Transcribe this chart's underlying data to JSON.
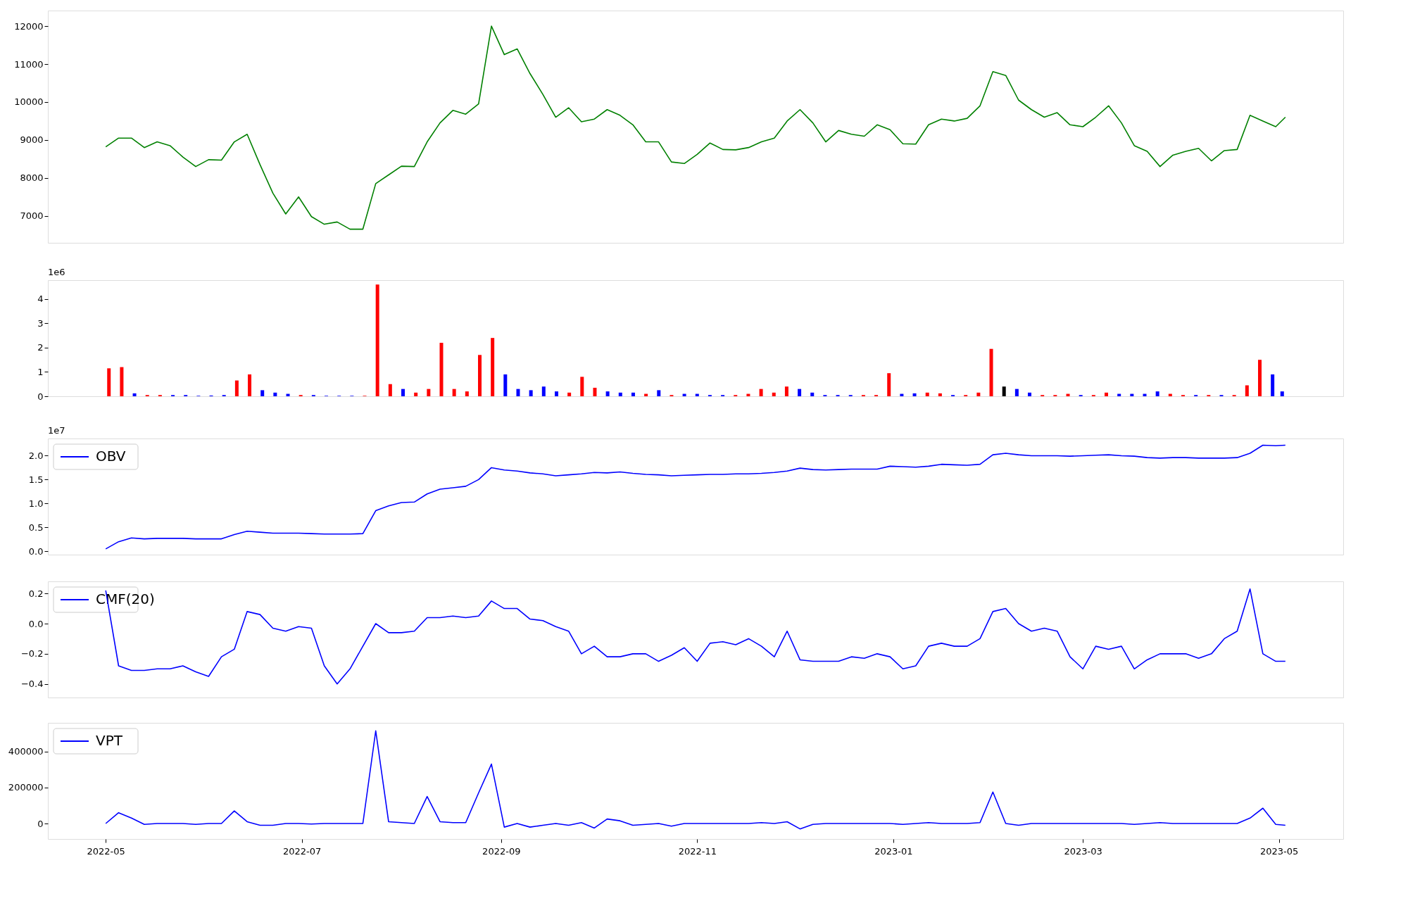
{
  "chart_data": [
    {
      "type": "line",
      "x": [
        "2022-05-01",
        "2022-05-05",
        "2022-05-09",
        "2022-05-13",
        "2022-05-17",
        "2022-05-21",
        "2022-05-25",
        "2022-05-29",
        "2022-06-02",
        "2022-06-06",
        "2022-06-10",
        "2022-06-14",
        "2022-06-18",
        "2022-06-22",
        "2022-06-26",
        "2022-06-30",
        "2022-07-04",
        "2022-07-08",
        "2022-07-12",
        "2022-07-16",
        "2022-07-20",
        "2022-07-24",
        "2022-07-28",
        "2022-08-01",
        "2022-08-05",
        "2022-08-09",
        "2022-08-13",
        "2022-08-17",
        "2022-08-21",
        "2022-08-25",
        "2022-08-29",
        "2022-09-02",
        "2022-09-06",
        "2022-09-10",
        "2022-09-14",
        "2022-09-18",
        "2022-09-22",
        "2022-09-26",
        "2022-09-30",
        "2022-10-04",
        "2022-10-08",
        "2022-10-12",
        "2022-10-16",
        "2022-10-20",
        "2022-10-24",
        "2022-10-28",
        "2022-11-01",
        "2022-11-05",
        "2022-11-09",
        "2022-11-13",
        "2022-11-17",
        "2022-11-21",
        "2022-11-25",
        "2022-11-29",
        "2022-12-03",
        "2022-12-07",
        "2022-12-11",
        "2022-12-15",
        "2022-12-19",
        "2022-12-23",
        "2022-12-27",
        "2022-12-31",
        "2023-01-04",
        "2023-01-08",
        "2023-01-12",
        "2023-01-16",
        "2023-01-20",
        "2023-01-24",
        "2023-01-28",
        "2023-02-01",
        "2023-02-05",
        "2023-02-09",
        "2023-02-13",
        "2023-02-17",
        "2023-02-21",
        "2023-02-25",
        "2023-03-01",
        "2023-03-05",
        "2023-03-09",
        "2023-03-13",
        "2023-03-17",
        "2023-03-21",
        "2023-03-25",
        "2023-03-29",
        "2023-04-02",
        "2023-04-06",
        "2023-04-10",
        "2023-04-14",
        "2023-04-18",
        "2023-04-22",
        "2023-04-26",
        "2023-04-30",
        "2023-05-03"
      ],
      "series": [
        {
          "color": "#008000",
          "values": [
            8820,
            9050,
            9050,
            8800,
            8950,
            8850,
            8550,
            8300,
            8480,
            8470,
            8950,
            9150,
            8350,
            7600,
            7050,
            7500,
            6980,
            6780,
            6840,
            6650,
            6650,
            7850,
            8080,
            8310,
            8300,
            8950,
            9450,
            9780,
            9680,
            9950,
            12000,
            11250,
            11400,
            10750,
            10200,
            9600,
            9850,
            9480,
            9550,
            9800,
            9650,
            9400,
            8950,
            8950,
            8420,
            8380,
            8620,
            8920,
            8750,
            8740,
            8800,
            8950,
            9050,
            9500,
            9800,
            9450,
            8950,
            9250,
            9150,
            9100,
            9400,
            9270,
            8900,
            8890,
            9400,
            9550,
            9500,
            9570,
            9900,
            10800,
            10700,
            10050,
            9800,
            9600,
            9720,
            9400,
            9350,
            9600,
            9900,
            9450,
            8850,
            8700,
            8300,
            8600,
            8700,
            8780,
            8450,
            8720,
            8750,
            9650,
            9500,
            9350,
            9600
          ]
        }
      ],
      "xlim": [
        "2022-04-13",
        "2023-05-21"
      ],
      "ylim": [
        6290,
        12410
      ],
      "yticks": [
        7000,
        8000,
        9000,
        10000,
        11000,
        12000
      ],
      "tick_labels": "y"
    },
    {
      "type": "bar",
      "x": [
        "2022-05-01",
        "2022-05-05",
        "2022-05-09",
        "2022-05-13",
        "2022-05-17",
        "2022-05-21",
        "2022-05-25",
        "2022-05-29",
        "2022-06-02",
        "2022-06-06",
        "2022-06-10",
        "2022-06-14",
        "2022-06-18",
        "2022-06-22",
        "2022-06-26",
        "2022-06-30",
        "2022-07-04",
        "2022-07-08",
        "2022-07-12",
        "2022-07-16",
        "2022-07-20",
        "2022-07-24",
        "2022-07-28",
        "2022-08-01",
        "2022-08-05",
        "2022-08-09",
        "2022-08-13",
        "2022-08-17",
        "2022-08-21",
        "2022-08-25",
        "2022-08-29",
        "2022-09-02",
        "2022-09-06",
        "2022-09-10",
        "2022-09-14",
        "2022-09-18",
        "2022-09-22",
        "2022-09-26",
        "2022-09-30",
        "2022-10-04",
        "2022-10-08",
        "2022-10-12",
        "2022-10-16",
        "2022-10-20",
        "2022-10-24",
        "2022-10-28",
        "2022-11-01",
        "2022-11-05",
        "2022-11-09",
        "2022-11-13",
        "2022-11-17",
        "2022-11-21",
        "2022-11-25",
        "2022-11-29",
        "2022-12-03",
        "2022-12-07",
        "2022-12-11",
        "2022-12-15",
        "2022-12-19",
        "2022-12-23",
        "2022-12-27",
        "2022-12-31",
        "2023-01-04",
        "2023-01-08",
        "2023-01-12",
        "2023-01-16",
        "2023-01-20",
        "2023-01-24",
        "2023-01-28",
        "2023-02-01",
        "2023-02-05",
        "2023-02-09",
        "2023-02-13",
        "2023-02-17",
        "2023-02-21",
        "2023-02-25",
        "2023-03-01",
        "2023-03-05",
        "2023-03-09",
        "2023-03-13",
        "2023-03-17",
        "2023-03-21",
        "2023-03-25",
        "2023-03-29",
        "2023-04-02",
        "2023-04-06",
        "2023-04-10",
        "2023-04-14",
        "2023-04-18",
        "2023-04-22",
        "2023-04-26",
        "2023-04-30",
        "2023-05-03"
      ],
      "values": [
        1.15,
        1.2,
        0.12,
        0.05,
        0.05,
        0.05,
        0.05,
        0.02,
        0.03,
        0.05,
        0.65,
        0.9,
        0.25,
        0.15,
        0.1,
        0.05,
        0.05,
        0.02,
        0.02,
        0.02,
        0.02,
        4.6,
        0.5,
        0.3,
        0.15,
        0.3,
        2.2,
        0.3,
        0.2,
        1.7,
        2.4,
        0.9,
        0.3,
        0.25,
        0.4,
        0.2,
        0.15,
        0.8,
        0.35,
        0.2,
        0.15,
        0.15,
        0.1,
        0.25,
        0.05,
        0.1,
        0.1,
        0.05,
        0.05,
        0.05,
        0.1,
        0.3,
        0.15,
        0.4,
        0.3,
        0.15,
        0.05,
        0.05,
        0.05,
        0.05,
        0.05,
        0.95,
        0.1,
        0.12,
        0.15,
        0.12,
        0.05,
        0.05,
        0.15,
        1.95,
        0.4,
        0.3,
        0.15,
        0.05,
        0.05,
        0.1,
        0.05,
        0.05,
        0.15,
        0.1,
        0.1,
        0.1,
        0.2,
        0.1,
        0.05,
        0.05,
        0.05,
        0.05,
        0.05,
        0.45,
        1.5,
        0.9,
        0.2
      ],
      "colors": [
        "#ff0000",
        "#ff0000",
        "#0000ff",
        "#ff0000",
        "#ff0000",
        "#0000ff",
        "#0000ff",
        "#0000ff",
        "#0000ff",
        "#0000ff",
        "#ff0000",
        "#ff0000",
        "#0000ff",
        "#0000ff",
        "#0000ff",
        "#ff0000",
        "#0000ff",
        "#0000ff",
        "#0000ff",
        "#0000ff",
        "#ff0000",
        "#ff0000",
        "#ff0000",
        "#0000ff",
        "#ff0000",
        "#ff0000",
        "#ff0000",
        "#ff0000",
        "#ff0000",
        "#ff0000",
        "#ff0000",
        "#0000ff",
        "#0000ff",
        "#0000ff",
        "#0000ff",
        "#0000ff",
        "#ff0000",
        "#ff0000",
        "#ff0000",
        "#0000ff",
        "#0000ff",
        "#0000ff",
        "#ff0000",
        "#0000ff",
        "#ff0000",
        "#0000ff",
        "#0000ff",
        "#0000ff",
        "#0000ff",
        "#ff0000",
        "#ff0000",
        "#ff0000",
        "#ff0000",
        "#ff0000",
        "#0000ff",
        "#0000ff",
        "#0000ff",
        "#0000ff",
        "#0000ff",
        "#ff0000",
        "#ff0000",
        "#ff0000",
        "#0000ff",
        "#0000ff",
        "#ff0000",
        "#ff0000",
        "#0000ff",
        "#ff0000",
        "#ff0000",
        "#ff0000",
        "#000000",
        "#0000ff",
        "#0000ff",
        "#ff0000",
        "#ff0000",
        "#ff0000",
        "#0000ff",
        "#ff0000",
        "#ff0000",
        "#0000ff",
        "#0000ff",
        "#0000ff",
        "#0000ff",
        "#ff0000",
        "#ff0000",
        "#0000ff",
        "#ff0000",
        "#0000ff",
        "#ff0000",
        "#ff0000",
        "#ff0000",
        "#0000ff",
        "#0000ff"
      ],
      "xlim": [
        "2022-04-13",
        "2023-05-21"
      ],
      "ylim": [
        0,
        4.78
      ],
      "yticks": [
        0,
        1,
        2,
        3,
        4
      ],
      "annotations": [
        "1e6"
      ],
      "tick_labels": "y"
    },
    {
      "type": "line",
      "x": [
        "2022-05-01",
        "2022-05-05",
        "2022-05-09",
        "2022-05-13",
        "2022-05-17",
        "2022-05-21",
        "2022-05-25",
        "2022-05-29",
        "2022-06-02",
        "2022-06-06",
        "2022-06-10",
        "2022-06-14",
        "2022-06-18",
        "2022-06-22",
        "2022-06-26",
        "2022-06-30",
        "2022-07-04",
        "2022-07-08",
        "2022-07-12",
        "2022-07-16",
        "2022-07-20",
        "2022-07-24",
        "2022-07-28",
        "2022-08-01",
        "2022-08-05",
        "2022-08-09",
        "2022-08-13",
        "2022-08-17",
        "2022-08-21",
        "2022-08-25",
        "2022-08-29",
        "2022-09-02",
        "2022-09-06",
        "2022-09-10",
        "2022-09-14",
        "2022-09-18",
        "2022-09-22",
        "2022-09-26",
        "2022-09-30",
        "2022-10-04",
        "2022-10-08",
        "2022-10-12",
        "2022-10-16",
        "2022-10-20",
        "2022-10-24",
        "2022-10-28",
        "2022-11-01",
        "2022-11-05",
        "2022-11-09",
        "2022-11-13",
        "2022-11-17",
        "2022-11-21",
        "2022-11-25",
        "2022-11-29",
        "2022-12-03",
        "2022-12-07",
        "2022-12-11",
        "2022-12-15",
        "2022-12-19",
        "2022-12-23",
        "2022-12-27",
        "2022-12-31",
        "2023-01-04",
        "2023-01-08",
        "2023-01-12",
        "2023-01-16",
        "2023-01-20",
        "2023-01-24",
        "2023-01-28",
        "2023-02-01",
        "2023-02-05",
        "2023-02-09",
        "2023-02-13",
        "2023-02-17",
        "2023-02-21",
        "2023-02-25",
        "2023-03-01",
        "2023-03-05",
        "2023-03-09",
        "2023-03-13",
        "2023-03-17",
        "2023-03-21",
        "2023-03-25",
        "2023-03-29",
        "2023-04-02",
        "2023-04-06",
        "2023-04-10",
        "2023-04-14",
        "2023-04-18",
        "2023-04-22",
        "2023-04-26",
        "2023-04-30",
        "2023-05-03"
      ],
      "series": [
        {
          "name": "OBV",
          "color": "#0000ff",
          "values": [
            0.05,
            0.2,
            0.28,
            0.26,
            0.27,
            0.27,
            0.27,
            0.26,
            0.26,
            0.26,
            0.35,
            0.42,
            0.4,
            0.38,
            0.38,
            0.38,
            0.37,
            0.36,
            0.36,
            0.36,
            0.37,
            0.85,
            0.95,
            1.02,
            1.03,
            1.2,
            1.3,
            1.33,
            1.36,
            1.5,
            1.75,
            1.7,
            1.68,
            1.64,
            1.62,
            1.58,
            1.6,
            1.62,
            1.65,
            1.64,
            1.66,
            1.63,
            1.61,
            1.6,
            1.58,
            1.59,
            1.6,
            1.61,
            1.61,
            1.62,
            1.62,
            1.63,
            1.65,
            1.68,
            1.74,
            1.71,
            1.7,
            1.71,
            1.72,
            1.72,
            1.72,
            1.78,
            1.77,
            1.76,
            1.78,
            1.82,
            1.81,
            1.8,
            1.82,
            2.02,
            2.05,
            2.02,
            2.0,
            2.0,
            2.0,
            1.99,
            2.0,
            2.01,
            2.02,
            2.0,
            1.99,
            1.96,
            1.95,
            1.96,
            1.96,
            1.95,
            1.95,
            1.95,
            1.96,
            2.05,
            2.22,
            2.21,
            2.22
          ]
        }
      ],
      "xlim": [
        "2022-04-13",
        "2023-05-21"
      ],
      "ylim": [
        -0.07,
        2.36
      ],
      "yticks": [
        {
          "value": 0,
          "label": "0.0"
        },
        0.5,
        {
          "value": 1,
          "label": "1.0"
        },
        1.5,
        {
          "value": 2,
          "label": "2.0"
        }
      ],
      "annotations": [
        "1e7"
      ],
      "tick_labels": "y",
      "legend": "top left"
    },
    {
      "type": "line",
      "x": [
        "2022-05-01",
        "2022-05-05",
        "2022-05-09",
        "2022-05-13",
        "2022-05-17",
        "2022-05-21",
        "2022-05-25",
        "2022-05-29",
        "2022-06-02",
        "2022-06-06",
        "2022-06-10",
        "2022-06-14",
        "2022-06-18",
        "2022-06-22",
        "2022-06-26",
        "2022-06-30",
        "2022-07-04",
        "2022-07-08",
        "2022-07-12",
        "2022-07-16",
        "2022-07-20",
        "2022-07-24",
        "2022-07-28",
        "2022-08-01",
        "2022-08-05",
        "2022-08-09",
        "2022-08-13",
        "2022-08-17",
        "2022-08-21",
        "2022-08-25",
        "2022-08-29",
        "2022-09-02",
        "2022-09-06",
        "2022-09-10",
        "2022-09-14",
        "2022-09-18",
        "2022-09-22",
        "2022-09-26",
        "2022-09-30",
        "2022-10-04",
        "2022-10-08",
        "2022-10-12",
        "2022-10-16",
        "2022-10-20",
        "2022-10-24",
        "2022-10-28",
        "2022-11-01",
        "2022-11-05",
        "2022-11-09",
        "2022-11-13",
        "2022-11-17",
        "2022-11-21",
        "2022-11-25",
        "2022-11-29",
        "2022-12-03",
        "2022-12-07",
        "2022-12-11",
        "2022-12-15",
        "2022-12-19",
        "2022-12-23",
        "2022-12-27",
        "2022-12-31",
        "2023-01-04",
        "2023-01-08",
        "2023-01-12",
        "2023-01-16",
        "2023-01-20",
        "2023-01-24",
        "2023-01-28",
        "2023-02-01",
        "2023-02-05",
        "2023-02-09",
        "2023-02-13",
        "2023-02-17",
        "2023-02-21",
        "2023-02-25",
        "2023-03-01",
        "2023-03-05",
        "2023-03-09",
        "2023-03-13",
        "2023-03-17",
        "2023-03-21",
        "2023-03-25",
        "2023-03-29",
        "2023-04-02",
        "2023-04-06",
        "2023-04-10",
        "2023-04-14",
        "2023-04-18",
        "2023-04-22",
        "2023-04-26",
        "2023-04-30",
        "2023-05-03"
      ],
      "series": [
        {
          "name": "CMF(20)",
          "color": "#0000ff",
          "values": [
            0.22,
            -0.28,
            -0.31,
            -0.31,
            -0.3,
            -0.3,
            -0.28,
            -0.32,
            -0.35,
            -0.22,
            -0.17,
            0.08,
            0.06,
            -0.03,
            -0.05,
            -0.02,
            -0.03,
            -0.28,
            -0.4,
            -0.3,
            -0.15,
            0.0,
            -0.06,
            -0.06,
            -0.05,
            0.04,
            0.04,
            0.05,
            0.04,
            0.05,
            0.15,
            0.1,
            0.1,
            0.03,
            0.02,
            -0.02,
            -0.05,
            -0.2,
            -0.15,
            -0.22,
            -0.22,
            -0.2,
            -0.2,
            -0.25,
            -0.21,
            -0.16,
            -0.25,
            -0.13,
            -0.12,
            -0.14,
            -0.1,
            -0.15,
            -0.22,
            -0.05,
            -0.24,
            -0.25,
            -0.25,
            -0.25,
            -0.22,
            -0.23,
            -0.2,
            -0.22,
            -0.3,
            -0.28,
            -0.15,
            -0.13,
            -0.15,
            -0.15,
            -0.1,
            0.08,
            0.1,
            0.0,
            -0.05,
            -0.03,
            -0.05,
            -0.22,
            -0.3,
            -0.15,
            -0.17,
            -0.15,
            -0.3,
            -0.24,
            -0.2,
            -0.2,
            -0.2,
            -0.23,
            -0.2,
            -0.1,
            -0.05,
            0.23,
            -0.2,
            -0.25,
            -0.25
          ]
        }
      ],
      "xlim": [
        "2022-04-13",
        "2023-05-21"
      ],
      "ylim": [
        -0.49,
        0.28
      ],
      "yticks": [
        {
          "value": -0.4,
          "label": "−0.4"
        },
        {
          "value": -0.2,
          "label": "−0.2"
        },
        {
          "value": 0,
          "label": "0.0"
        },
        {
          "value": 0.2,
          "label": "0.2"
        }
      ],
      "tick_labels": "y",
      "legend": "top left"
    },
    {
      "type": "line",
      "x": [
        "2022-05-01",
        "2022-05-05",
        "2022-05-09",
        "2022-05-13",
        "2022-05-17",
        "2022-05-21",
        "2022-05-25",
        "2022-05-29",
        "2022-06-02",
        "2022-06-06",
        "2022-06-10",
        "2022-06-14",
        "2022-06-18",
        "2022-06-22",
        "2022-06-26",
        "2022-06-30",
        "2022-07-04",
        "2022-07-08",
        "2022-07-12",
        "2022-07-16",
        "2022-07-20",
        "2022-07-24",
        "2022-07-28",
        "2022-08-01",
        "2022-08-05",
        "2022-08-09",
        "2022-08-13",
        "2022-08-17",
        "2022-08-21",
        "2022-08-25",
        "2022-08-29",
        "2022-09-02",
        "2022-09-06",
        "2022-09-10",
        "2022-09-14",
        "2022-09-18",
        "2022-09-22",
        "2022-09-26",
        "2022-09-30",
        "2022-10-04",
        "2022-10-08",
        "2022-10-12",
        "2022-10-16",
        "2022-10-20",
        "2022-10-24",
        "2022-10-28",
        "2022-11-01",
        "2022-11-05",
        "2022-11-09",
        "2022-11-13",
        "2022-11-17",
        "2022-11-21",
        "2022-11-25",
        "2022-11-29",
        "2022-12-03",
        "2022-12-07",
        "2022-12-11",
        "2022-12-15",
        "2022-12-19",
        "2022-12-23",
        "2022-12-27",
        "2022-12-31",
        "2023-01-04",
        "2023-01-08",
        "2023-01-12",
        "2023-01-16",
        "2023-01-20",
        "2023-01-24",
        "2023-01-28",
        "2023-02-01",
        "2023-02-05",
        "2023-02-09",
        "2023-02-13",
        "2023-02-17",
        "2023-02-21",
        "2023-02-25",
        "2023-03-01",
        "2023-03-05",
        "2023-03-09",
        "2023-03-13",
        "2023-03-17",
        "2023-03-21",
        "2023-03-25",
        "2023-03-29",
        "2023-04-02",
        "2023-04-06",
        "2023-04-10",
        "2023-04-14",
        "2023-04-18",
        "2023-04-22",
        "2023-04-26",
        "2023-04-30",
        "2023-05-03"
      ],
      "series": [
        {
          "name": "VPT",
          "color": "#0000ff",
          "values": [
            0,
            60000,
            30000,
            -5000,
            0,
            0,
            0,
            -5000,
            0,
            0,
            70000,
            10000,
            -10000,
            -10000,
            0,
            0,
            -3000,
            0,
            0,
            0,
            0,
            515000,
            10000,
            5000,
            0,
            150000,
            10000,
            5000,
            5000,
            170000,
            330000,
            -20000,
            0,
            -20000,
            -10000,
            0,
            -10000,
            5000,
            -25000,
            25000,
            15000,
            -10000,
            -5000,
            0,
            -15000,
            0,
            0,
            0,
            0,
            0,
            0,
            5000,
            0,
            10000,
            -30000,
            -5000,
            0,
            0,
            0,
            0,
            0,
            0,
            -5000,
            0,
            5000,
            0,
            0,
            0,
            5000,
            175000,
            0,
            -10000,
            0,
            0,
            0,
            0,
            0,
            0,
            0,
            0,
            -5000,
            0,
            5000,
            0,
            0,
            0,
            0,
            0,
            0,
            30000,
            85000,
            -5000,
            -10000
          ]
        }
      ],
      "xlim": [
        "2022-04-13",
        "2023-05-21"
      ],
      "ylim": [
        -86000,
        559000
      ],
      "yticks": [
        0,
        200000,
        400000
      ],
      "xticks": [
        {
          "value": "2022-05-01",
          "label": "2022-05"
        },
        {
          "value": "2022-07-01",
          "label": "2022-07"
        },
        {
          "value": "2022-09-01",
          "label": "2022-09"
        },
        {
          "value": "2022-11-01",
          "label": "2022-11"
        },
        {
          "value": "2023-01-01",
          "label": "2023-01"
        },
        {
          "value": "2023-03-01",
          "label": "2023-03"
        },
        {
          "value": "2023-05-01",
          "label": "2023-05"
        }
      ],
      "legend": "top left"
    }
  ]
}
